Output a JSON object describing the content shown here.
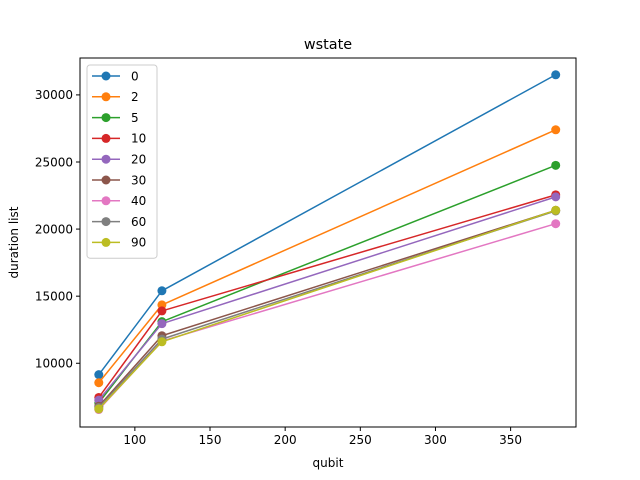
{
  "chart_data": {
    "type": "line",
    "title": "wstate",
    "xlabel": "qubit",
    "ylabel": "duration list",
    "xlim": [
      63.5,
      393.5
    ],
    "ylim": [
      5250,
      32750
    ],
    "xticks": [
      100,
      150,
      200,
      250,
      300,
      350
    ],
    "yticks": [
      10000,
      15000,
      20000,
      25000,
      30000
    ],
    "xtick_labels": [
      "100",
      "150",
      "200",
      "250",
      "300",
      "350"
    ],
    "ytick_labels": [
      "10000",
      "15000",
      "20000",
      "25000",
      "30000"
    ],
    "grid": false,
    "legend_position": "top-left",
    "x": [
      76,
      118,
      380
    ],
    "series": [
      {
        "name": "0",
        "color": "#1f77b4",
        "values": [
          9150,
          15400,
          31500
        ]
      },
      {
        "name": "2",
        "color": "#ff7f0e",
        "values": [
          8550,
          14350,
          27400
        ]
      },
      {
        "name": "5",
        "color": "#2ca02c",
        "values": [
          7050,
          13100,
          24750
        ]
      },
      {
        "name": "10",
        "color": "#d62728",
        "values": [
          7450,
          13900,
          22550
        ]
      },
      {
        "name": "20",
        "color": "#9467bd",
        "values": [
          7250,
          12950,
          22400
        ]
      },
      {
        "name": "30",
        "color": "#8c564b",
        "values": [
          6800,
          12050,
          21400
        ]
      },
      {
        "name": "40",
        "color": "#e377c2",
        "values": [
          6550,
          11650,
          20400
        ]
      },
      {
        "name": "60",
        "color": "#7f7f7f",
        "values": [
          6700,
          11800,
          21350
        ]
      },
      {
        "name": "90",
        "color": "#bcbd22",
        "values": [
          6600,
          11600,
          21400
        ]
      }
    ]
  }
}
